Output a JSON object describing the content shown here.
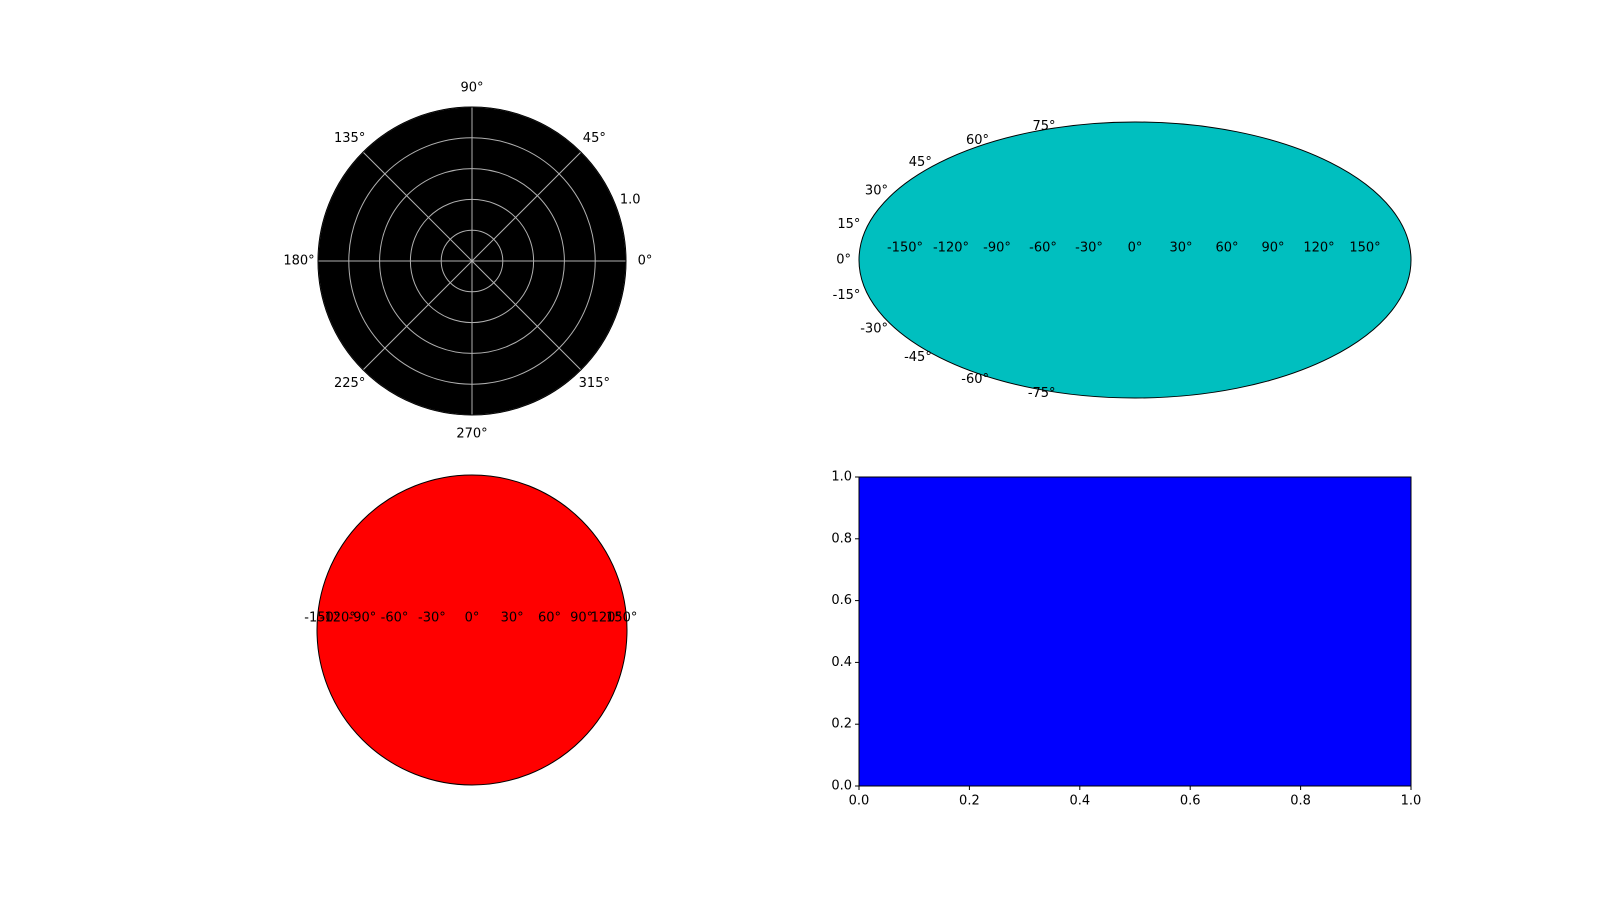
{
  "figure": {
    "background": "#ffffff"
  },
  "chart_data": [
    {
      "type": "polar",
      "axes_facecolor": "#000000",
      "grid": true,
      "grid_color": "#b0b0b0",
      "theta_ticks_deg": [
        0,
        45,
        90,
        135,
        180,
        225,
        270,
        315
      ],
      "theta_tick_labels": [
        "0°",
        "45°",
        "90°",
        "135°",
        "180°",
        "225°",
        "270°",
        "315°"
      ],
      "r_ticks": [
        0.2,
        0.4,
        0.6,
        0.8,
        1.0
      ],
      "r_tick_labels": [
        "1.0"
      ],
      "rlim": [
        0,
        1.0
      ],
      "series": []
    },
    {
      "type": "map-projection",
      "projection": "aitoff",
      "axes_facecolor": "#00bfbf",
      "grid": false,
      "xlim_deg": [
        -180,
        180
      ],
      "ylim_deg": [
        -90,
        90
      ],
      "x_ticks_deg": [
        -150,
        -120,
        -90,
        -60,
        -30,
        0,
        30,
        60,
        90,
        120,
        150
      ],
      "x_tick_labels": [
        "-150°",
        "-120°",
        "-90°",
        "-60°",
        "-30°",
        "0°",
        "30°",
        "60°",
        "90°",
        "120°",
        "150°"
      ],
      "y_ticks_deg": [
        -75,
        -60,
        -45,
        -30,
        -15,
        0,
        15,
        30,
        45,
        60,
        75
      ],
      "y_tick_labels": [
        "-75°",
        "-60°",
        "-45°",
        "-30°",
        "-15°",
        "0°",
        "15°",
        "30°",
        "45°",
        "60°",
        "75°"
      ],
      "series": []
    },
    {
      "type": "map-projection",
      "projection": "lambert",
      "axes_facecolor": "#ff0000",
      "grid": false,
      "x_ticks_deg": [
        -150,
        -120,
        -90,
        -60,
        -30,
        0,
        30,
        60,
        90,
        120,
        150
      ],
      "x_tick_labels": [
        "-150°",
        "-120°",
        "-90°",
        "-60°",
        "-30°",
        "0°",
        "30°",
        "60°",
        "90°",
        "120°",
        "150°"
      ],
      "series": []
    },
    {
      "type": "rectilinear",
      "axes_facecolor": "#0000ff",
      "grid": false,
      "xlim": [
        0.0,
        1.0
      ],
      "ylim": [
        0.0,
        1.0
      ],
      "x_ticks": [
        0.0,
        0.2,
        0.4,
        0.6,
        0.8,
        1.0
      ],
      "x_tick_labels": [
        "0.0",
        "0.2",
        "0.4",
        "0.6",
        "0.8",
        "1.0"
      ],
      "y_ticks": [
        0.0,
        0.2,
        0.4,
        0.6,
        0.8,
        1.0
      ],
      "y_tick_labels": [
        "0.0",
        "0.2",
        "0.4",
        "0.6",
        "0.8",
        "1.0"
      ],
      "series": []
    }
  ]
}
